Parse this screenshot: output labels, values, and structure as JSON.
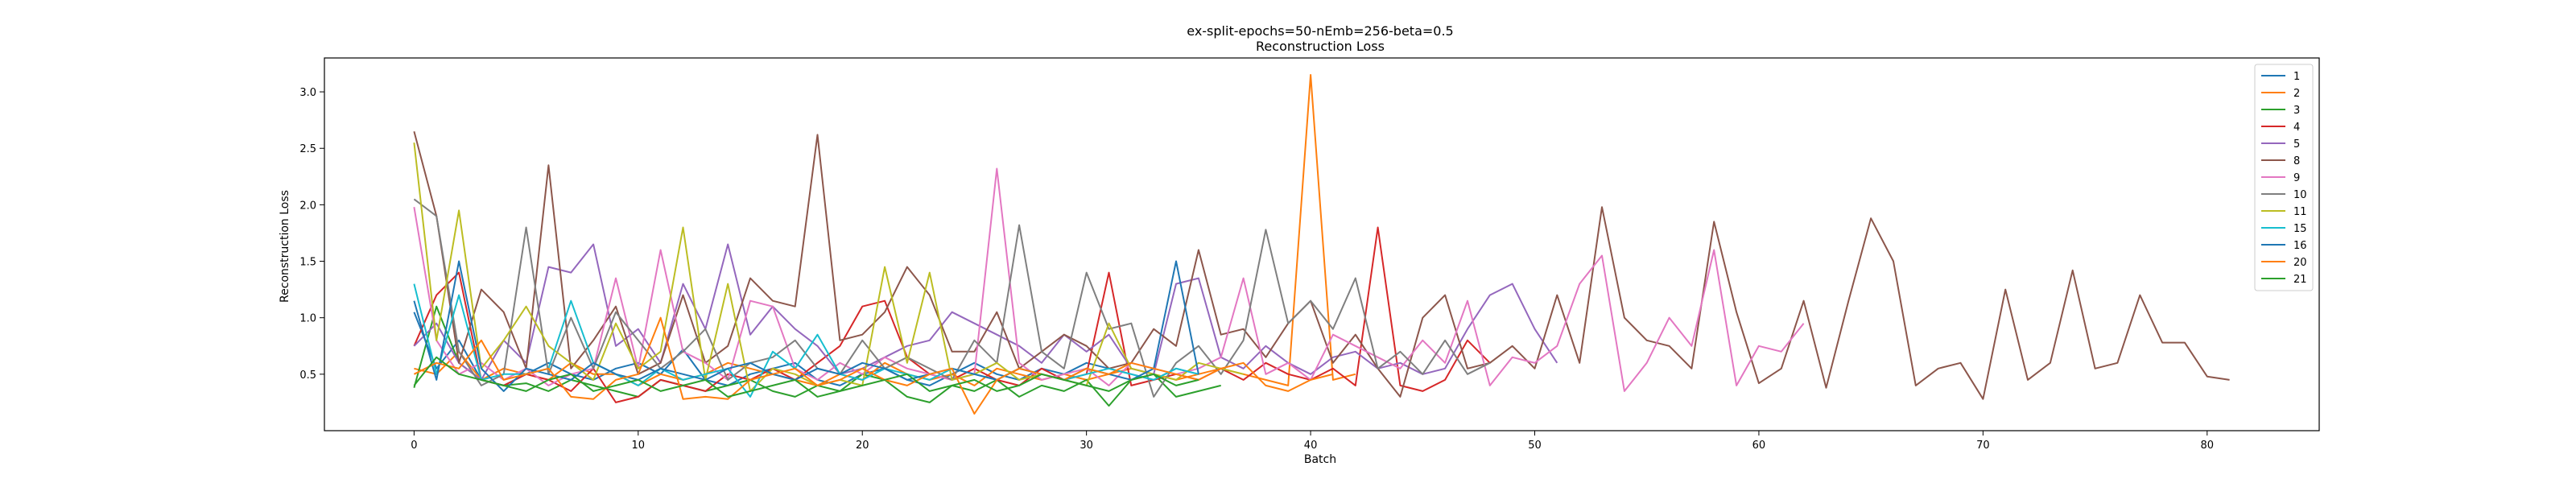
{
  "chart_data": {
    "type": "line",
    "title": "ex-split-epochs=50-nEmb=256-beta=0.5",
    "subtitle": "Reconstruction Loss",
    "xlabel": "Batch",
    "ylabel": "Reconstruction Loss",
    "xlim": [
      -4,
      85
    ],
    "ylim": [
      0.0,
      3.3
    ],
    "xticks": [
      0,
      10,
      20,
      30,
      40,
      50,
      60,
      70,
      80
    ],
    "yticks": [
      0.5,
      1.0,
      1.5,
      2.0,
      2.5,
      3.0
    ],
    "ytick_labels": [
      "0.5",
      "1.0",
      "1.5",
      "2.0",
      "2.5",
      "3.0"
    ],
    "grid": false,
    "legend_position": "top-right",
    "series": [
      {
        "name": "1",
        "color": "#1f77b4",
        "values": [
          1.05,
          0.55,
          0.8,
          0.45,
          0.4,
          0.5,
          0.6,
          0.5,
          0.45,
          0.55,
          0.6,
          0.5,
          0.72,
          0.45,
          0.4,
          0.5,
          0.55,
          0.6,
          0.45,
          0.4,
          0.5,
          0.55,
          0.45,
          0.4,
          0.5,
          0.6,
          0.5,
          0.45,
          0.55,
          0.5,
          0.6,
          0.55,
          0.5,
          0.45,
          0.55,
          0.5
        ]
      },
      {
        "name": "2",
        "color": "#ff7f0e",
        "values": [
          0.55,
          0.5,
          0.7,
          0.45,
          0.55,
          0.5,
          0.45,
          0.6,
          0.5,
          0.5,
          0.4,
          0.5,
          0.45,
          0.5,
          0.6,
          0.55,
          0.5,
          0.45,
          0.4,
          0.5,
          0.45,
          0.6,
          0.5,
          0.45,
          0.5,
          0.4,
          0.55,
          0.5,
          0.45,
          0.5,
          0.45,
          0.5,
          0.55,
          0.5,
          0.45,
          0.5,
          0.55,
          0.5,
          0.45,
          0.4,
          3.15,
          0.45,
          0.5
        ]
      },
      {
        "name": "3",
        "color": "#2ca02c",
        "values": [
          0.38,
          1.1,
          0.6,
          0.45,
          0.4,
          0.42,
          0.35,
          0.45,
          0.4,
          0.35,
          0.3,
          0.45,
          0.4,
          0.35,
          0.4,
          0.45,
          0.35,
          0.3,
          0.4,
          0.35,
          0.5,
          0.45,
          0.3,
          0.25,
          0.4,
          0.35,
          0.45,
          0.3,
          0.4,
          0.35,
          0.45,
          0.22,
          0.45,
          0.5,
          0.3,
          0.35,
          0.4
        ]
      },
      {
        "name": "4",
        "color": "#d62728",
        "values": [
          0.75,
          1.2,
          1.4,
          0.45,
          0.4,
          0.5,
          0.45,
          0.35,
          0.55,
          0.25,
          0.3,
          0.45,
          0.4,
          0.35,
          0.5,
          0.45,
          0.55,
          0.45,
          0.6,
          0.75,
          1.1,
          1.15,
          0.65,
          0.5,
          0.45,
          0.55,
          0.45,
          0.4,
          0.55,
          0.45,
          0.5,
          1.4,
          0.4,
          0.45,
          0.5,
          0.45,
          0.55,
          0.45,
          0.6,
          0.5,
          0.45,
          0.55,
          0.4,
          1.8,
          0.4,
          0.35,
          0.45,
          0.8,
          0.6
        ]
      },
      {
        "name": "5",
        "color": "#9467bd",
        "values": [
          0.75,
          0.95,
          0.6,
          0.45,
          0.8,
          0.6,
          1.45,
          1.4,
          1.65,
          0.75,
          0.9,
          0.6,
          1.3,
          0.9,
          1.65,
          0.85,
          1.1,
          0.9,
          0.75,
          0.5,
          0.55,
          0.65,
          0.75,
          0.8,
          1.05,
          0.95,
          0.85,
          0.75,
          0.6,
          0.85,
          0.7,
          0.85,
          0.55,
          0.5,
          1.3,
          1.35,
          0.65,
          0.55,
          0.75,
          0.6,
          0.5,
          0.65,
          0.7,
          0.55,
          0.6,
          0.5,
          0.55,
          0.9,
          1.2,
          1.3,
          0.9,
          0.6
        ]
      },
      {
        "name": "8",
        "color": "#8c564b",
        "values": [
          2.65,
          1.9,
          0.6,
          1.25,
          1.05,
          0.55,
          2.35,
          0.55,
          0.8,
          1.1,
          0.5,
          0.6,
          1.2,
          0.6,
          0.75,
          1.35,
          1.15,
          1.1,
          2.62,
          0.8,
          0.85,
          1.05,
          1.45,
          1.2,
          0.7,
          0.7,
          1.05,
          0.55,
          0.7,
          0.85,
          0.75,
          0.55,
          0.6,
          0.9,
          0.75,
          1.6,
          0.85,
          0.9,
          0.65,
          0.95,
          1.15,
          0.6,
          0.85,
          0.55,
          0.3,
          1.0,
          1.2,
          0.55,
          0.6,
          0.75,
          0.55,
          1.2,
          0.6,
          1.98,
          1.0,
          0.8,
          0.75,
          0.55,
          1.85,
          1.05,
          0.42,
          0.55,
          1.15,
          0.38,
          1.15,
          1.88,
          1.5,
          0.4,
          0.55,
          0.6,
          0.28,
          1.25,
          0.45,
          0.6,
          1.42,
          0.55,
          0.6,
          1.2,
          0.78,
          0.78,
          0.48,
          0.45
        ]
      },
      {
        "name": "9",
        "color": "#e377c2",
        "values": [
          1.98,
          0.8,
          0.5,
          0.6,
          0.45,
          0.55,
          0.4,
          0.5,
          0.55,
          1.35,
          0.55,
          1.6,
          0.7,
          0.6,
          0.45,
          1.15,
          1.1,
          0.55,
          0.45,
          0.6,
          0.5,
          0.65,
          0.55,
          0.5,
          0.45,
          0.5,
          2.32,
          0.6,
          0.45,
          0.5,
          0.55,
          0.4,
          0.6,
          0.55,
          0.5,
          0.55,
          0.65,
          1.35,
          0.5,
          0.6,
          0.45,
          0.85,
          0.75,
          0.65,
          0.55,
          0.8,
          0.6,
          1.15,
          0.4,
          0.65,
          0.6,
          0.75,
          1.3,
          1.55,
          0.35,
          0.6,
          1.0,
          0.75,
          1.6,
          0.4,
          0.75,
          0.7,
          0.95
        ]
      },
      {
        "name": "10",
        "color": "#7f7f7f",
        "values": [
          2.05,
          1.9,
          0.7,
          0.4,
          0.5,
          1.8,
          0.5,
          1.0,
          0.55,
          1.05,
          0.8,
          0.55,
          0.7,
          0.9,
          0.45,
          0.6,
          0.65,
          0.8,
          0.55,
          0.5,
          0.8,
          0.55,
          0.65,
          0.55,
          0.45,
          0.8,
          0.6,
          1.82,
          0.7,
          0.55,
          1.4,
          0.9,
          0.95,
          0.3,
          0.6,
          0.75,
          0.5,
          0.8,
          1.78,
          0.95,
          1.15,
          0.9,
          1.35,
          0.55,
          0.7,
          0.5,
          0.8,
          0.5,
          0.6
        ]
      },
      {
        "name": "11",
        "color": "#bcbd22",
        "values": [
          2.55,
          0.8,
          1.95,
          0.55,
          0.8,
          1.1,
          0.75,
          0.6,
          0.45,
          0.95,
          0.55,
          0.7,
          1.8,
          0.45,
          1.3,
          0.35,
          0.55,
          0.5,
          0.4,
          0.45,
          0.4,
          1.45,
          0.6,
          1.4,
          0.45,
          0.5,
          0.6,
          0.45,
          0.5,
          0.45,
          0.4,
          0.95,
          0.55,
          0.5,
          0.45,
          0.6,
          0.55,
          0.5
        ]
      },
      {
        "name": "15",
        "color": "#17becf",
        "values": [
          1.3,
          0.5,
          1.2,
          0.45,
          0.5,
          0.5,
          0.55,
          1.15,
          0.6,
          0.5,
          0.4,
          0.55,
          0.45,
          0.5,
          0.55,
          0.3,
          0.7,
          0.55,
          0.85,
          0.5,
          0.45,
          0.55,
          0.5,
          0.45,
          0.55,
          0.5,
          0.45,
          0.55,
          0.5,
          0.45,
          0.5,
          0.55,
          0.5,
          0.45,
          0.55,
          0.5
        ]
      },
      {
        "name": "16",
        "color": "#1f77b4",
        "values": [
          1.15,
          0.45,
          1.5,
          0.55,
          0.35,
          0.55,
          0.5,
          0.45,
          0.6,
          0.5,
          0.45,
          0.55,
          0.5,
          0.45,
          0.55,
          0.6,
          0.5,
          0.45,
          0.55,
          0.5,
          0.6,
          0.55,
          0.45,
          0.5,
          0.55,
          0.5,
          0.45,
          0.55,
          0.5,
          0.45,
          0.55,
          0.5,
          0.45,
          0.55,
          1.5,
          0.5
        ]
      },
      {
        "name": "20",
        "color": "#ff7f0e",
        "values": [
          0.5,
          0.6,
          0.55,
          0.8,
          0.45,
          0.5,
          0.55,
          0.3,
          0.28,
          0.45,
          0.5,
          1.0,
          0.28,
          0.3,
          0.28,
          0.45,
          0.5,
          0.55,
          0.4,
          0.45,
          0.55,
          0.45,
          0.4,
          0.5,
          0.55,
          0.15,
          0.45,
          0.55,
          0.5,
          0.45,
          0.55,
          0.5,
          0.6,
          0.55,
          0.5,
          0.45,
          0.55,
          0.6,
          0.4,
          0.35,
          0.45,
          0.5
        ]
      },
      {
        "name": "21",
        "color": "#2ca02c",
        "values": [
          0.4,
          0.65,
          0.5,
          0.45,
          0.4,
          0.35,
          0.45,
          0.5,
          0.35,
          0.4,
          0.45,
          0.35,
          0.4,
          0.45,
          0.3,
          0.35,
          0.4,
          0.45,
          0.3,
          0.35,
          0.4,
          0.45,
          0.5,
          0.35,
          0.4,
          0.45,
          0.35,
          0.4,
          0.5,
          0.45,
          0.4,
          0.35,
          0.45,
          0.5,
          0.4,
          0.45
        ]
      }
    ]
  }
}
